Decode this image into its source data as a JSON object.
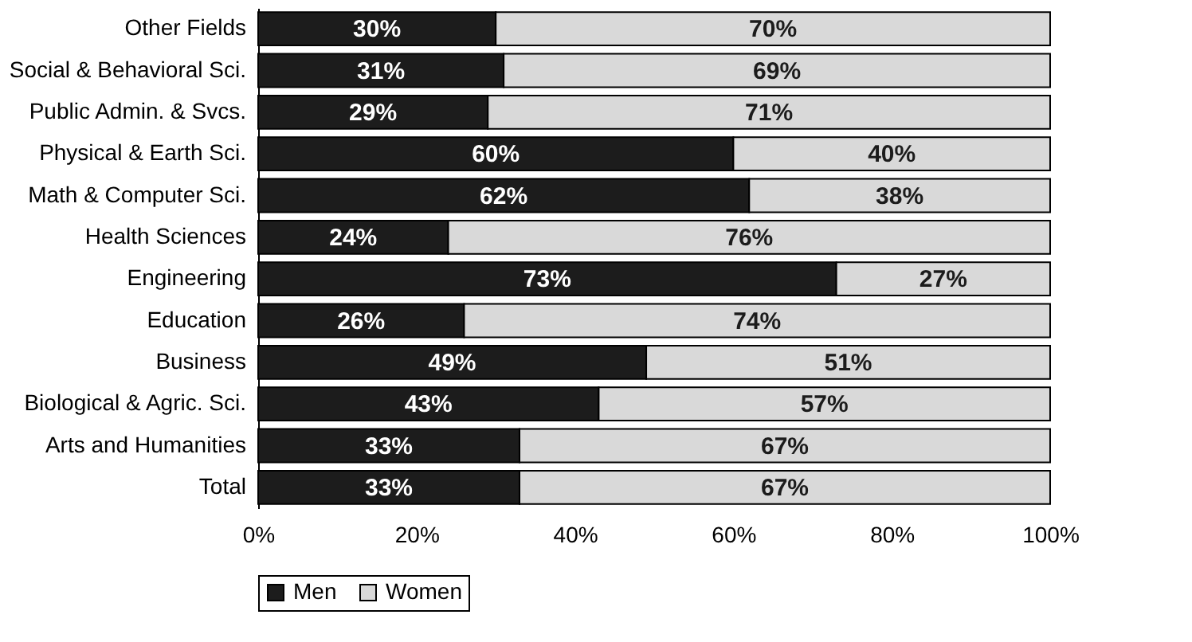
{
  "chart_data": {
    "type": "bar",
    "orientation": "horizontal",
    "stacked": true,
    "categories": [
      "Other Fields",
      "Social & Behavioral Sci.",
      "Public Admin. & Svcs.",
      "Physical & Earth Sci.",
      "Math & Computer Sci.",
      "Health Sciences",
      "Engineering",
      "Education",
      "Business",
      "Biological & Agric. Sci.",
      "Arts and Humanities",
      "Total"
    ],
    "series": [
      {
        "name": "Men",
        "color": "#1c1c1c",
        "values": [
          30,
          31,
          29,
          60,
          62,
          24,
          73,
          26,
          49,
          43,
          33,
          33
        ],
        "value_labels": [
          "30%",
          "31%",
          "29%",
          "60%",
          "62%",
          "24%",
          "73%",
          "26%",
          "49%",
          "43%",
          "33%",
          "33%"
        ]
      },
      {
        "name": "Women",
        "color": "#d9d9d9",
        "values": [
          70,
          69,
          71,
          40,
          38,
          76,
          27,
          74,
          51,
          57,
          67,
          67
        ],
        "value_labels": [
          "70%",
          "69%",
          "71%",
          "40%",
          "38%",
          "76%",
          "27%",
          "74%",
          "51%",
          "57%",
          "67%",
          "67%"
        ]
      }
    ],
    "xlim": [
      0,
      100
    ],
    "xticks": [
      {
        "value": 0,
        "label": "0%"
      },
      {
        "value": 20,
        "label": "20%"
      },
      {
        "value": 40,
        "label": "40%"
      },
      {
        "value": 60,
        "label": "60%"
      },
      {
        "value": 80,
        "label": "80%"
      },
      {
        "value": 100,
        "label": "100%"
      }
    ],
    "grid": false,
    "legend": "bottom"
  }
}
